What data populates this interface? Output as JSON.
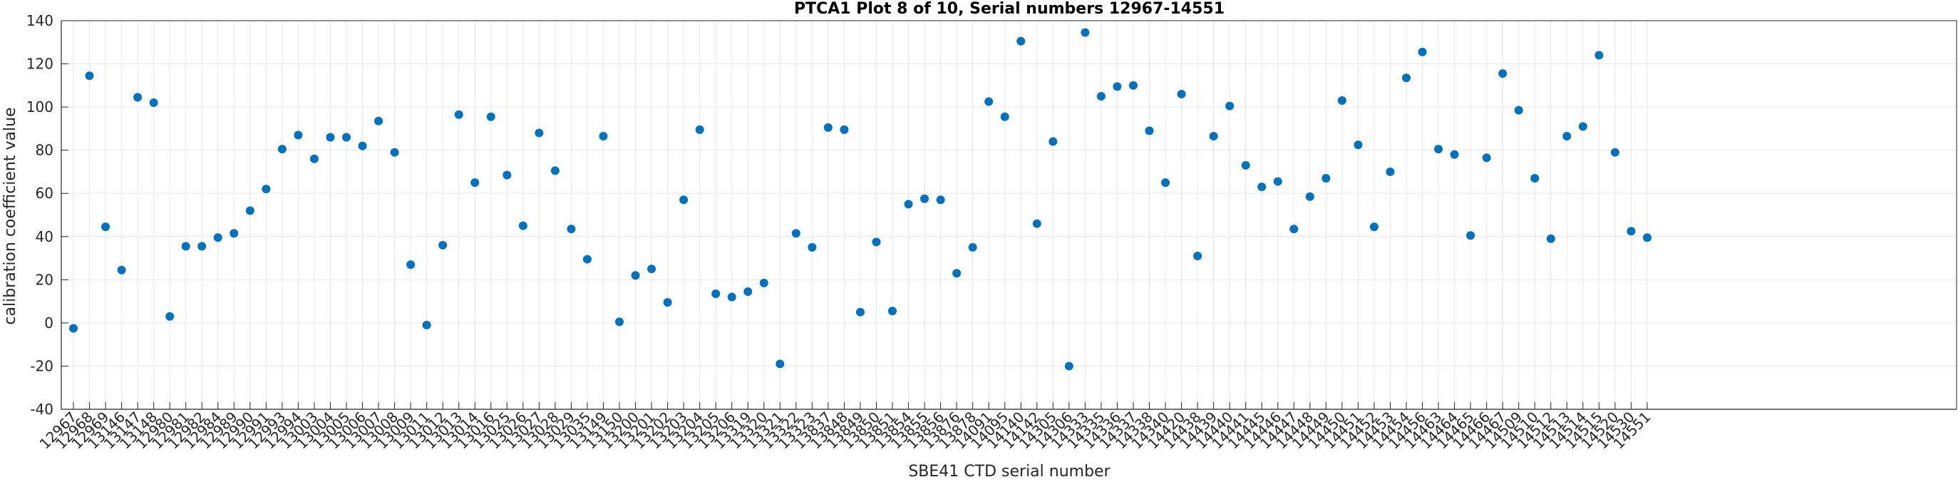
{
  "chart_data": {
    "type": "scatter",
    "title": "PTCA1 Plot 8 of 10, Serial numbers 12967-14551",
    "xlabel": "SBE41 CTD serial number",
    "ylabel": "calibration coefficient value",
    "ylim": [
      -40,
      140
    ],
    "yticks": [
      -40,
      -20,
      0,
      20,
      40,
      60,
      80,
      100,
      120,
      140
    ],
    "grid": true,
    "colors": {
      "marker": "#0072BD",
      "axis": "#262626",
      "grid": "#e6e6e6"
    },
    "series": [
      {
        "name": "PTCA1",
        "points": [
          {
            "label": "12967",
            "value": -2.5
          },
          {
            "label": "12968",
            "value": 114.5
          },
          {
            "label": "12969",
            "value": 44.5
          },
          {
            "label": "13146",
            "value": 24.5
          },
          {
            "label": "13147",
            "value": 104.5
          },
          {
            "label": "13148",
            "value": 102.0
          },
          {
            "label": "12980",
            "value": 3.0
          },
          {
            "label": "12981",
            "value": 35.5
          },
          {
            "label": "12982",
            "value": 35.5
          },
          {
            "label": "12984",
            "value": 39.5
          },
          {
            "label": "12989",
            "value": 41.5
          },
          {
            "label": "12990",
            "value": 52.0
          },
          {
            "label": "12991",
            "value": 62.0
          },
          {
            "label": "12993",
            "value": 80.5
          },
          {
            "label": "12994",
            "value": 87.0
          },
          {
            "label": "13003",
            "value": 76.0
          },
          {
            "label": "13004",
            "value": 86.0
          },
          {
            "label": "13005",
            "value": 86.0
          },
          {
            "label": "13006",
            "value": 82.0
          },
          {
            "label": "13007",
            "value": 93.5
          },
          {
            "label": "13008",
            "value": 79.0
          },
          {
            "label": "13009",
            "value": 27.0
          },
          {
            "label": "13011",
            "value": -1.0
          },
          {
            "label": "13012",
            "value": 36.0
          },
          {
            "label": "13013",
            "value": 96.5
          },
          {
            "label": "13014",
            "value": 65.0
          },
          {
            "label": "13016",
            "value": 95.5
          },
          {
            "label": "13025",
            "value": 68.5
          },
          {
            "label": "13026",
            "value": 45.0
          },
          {
            "label": "13027",
            "value": 88.0
          },
          {
            "label": "13028",
            "value": 70.5
          },
          {
            "label": "13029",
            "value": 43.5
          },
          {
            "label": "13035",
            "value": 29.5
          },
          {
            "label": "13149",
            "value": 86.5
          },
          {
            "label": "13150",
            "value": 0.5
          },
          {
            "label": "13200",
            "value": 22.0
          },
          {
            "label": "13201",
            "value": 25.0
          },
          {
            "label": "13202",
            "value": 9.5
          },
          {
            "label": "13203",
            "value": 57.0
          },
          {
            "label": "13204",
            "value": 89.5
          },
          {
            "label": "13205",
            "value": 13.5
          },
          {
            "label": "13206",
            "value": 12.0
          },
          {
            "label": "13319",
            "value": 14.5
          },
          {
            "label": "13320",
            "value": 18.5
          },
          {
            "label": "13321",
            "value": -19.0
          },
          {
            "label": "13322",
            "value": 41.5
          },
          {
            "label": "13323",
            "value": 35.0
          },
          {
            "label": "13837",
            "value": 90.5
          },
          {
            "label": "13848",
            "value": 89.5
          },
          {
            "label": "13849",
            "value": 5.0
          },
          {
            "label": "13850",
            "value": 37.5
          },
          {
            "label": "13851",
            "value": 5.5
          },
          {
            "label": "13854",
            "value": 55.0
          },
          {
            "label": "13855",
            "value": 57.5
          },
          {
            "label": "13856",
            "value": 57.0
          },
          {
            "label": "13876",
            "value": 23.0
          },
          {
            "label": "13878",
            "value": 35.0
          },
          {
            "label": "14091",
            "value": 102.5
          },
          {
            "label": "14095",
            "value": 95.5
          },
          {
            "label": "14140",
            "value": 130.5
          },
          {
            "label": "14142",
            "value": 46.0
          },
          {
            "label": "14305",
            "value": 84.0
          },
          {
            "label": "14306",
            "value": -20.0
          },
          {
            "label": "14333",
            "value": 134.5
          },
          {
            "label": "14335",
            "value": 105.0
          },
          {
            "label": "14336",
            "value": 109.5
          },
          {
            "label": "14337",
            "value": 110.0
          },
          {
            "label": "14338",
            "value": 89.0
          },
          {
            "label": "14340",
            "value": 65.0
          },
          {
            "label": "14420",
            "value": 106.0
          },
          {
            "label": "14438",
            "value": 31.0
          },
          {
            "label": "14439",
            "value": 86.5
          },
          {
            "label": "14440",
            "value": 100.5
          },
          {
            "label": "14441",
            "value": 73.0
          },
          {
            "label": "14445",
            "value": 63.0
          },
          {
            "label": "14446",
            "value": 65.5
          },
          {
            "label": "14447",
            "value": 43.5
          },
          {
            "label": "14448",
            "value": 58.5
          },
          {
            "label": "14449",
            "value": 67.0
          },
          {
            "label": "14450",
            "value": 103.0
          },
          {
            "label": "14451",
            "value": 82.5
          },
          {
            "label": "14452",
            "value": 44.5
          },
          {
            "label": "14453",
            "value": 70.0
          },
          {
            "label": "14454",
            "value": 113.5
          },
          {
            "label": "14456",
            "value": 125.5
          },
          {
            "label": "14463",
            "value": 80.5
          },
          {
            "label": "14464",
            "value": 78.0
          },
          {
            "label": "14465",
            "value": 40.5
          },
          {
            "label": "14466",
            "value": 76.5
          },
          {
            "label": "14467",
            "value": 115.5
          },
          {
            "label": "14509",
            "value": 98.5
          },
          {
            "label": "14510",
            "value": 67.0
          },
          {
            "label": "14512",
            "value": 39.0
          },
          {
            "label": "14513",
            "value": 86.5
          },
          {
            "label": "14514",
            "value": 91.0
          },
          {
            "label": "14515",
            "value": 124.0
          },
          {
            "label": "14520",
            "value": 79.0
          },
          {
            "label": "14530",
            "value": 42.5
          },
          {
            "label": "14551",
            "value": 39.5
          }
        ]
      }
    ]
  }
}
